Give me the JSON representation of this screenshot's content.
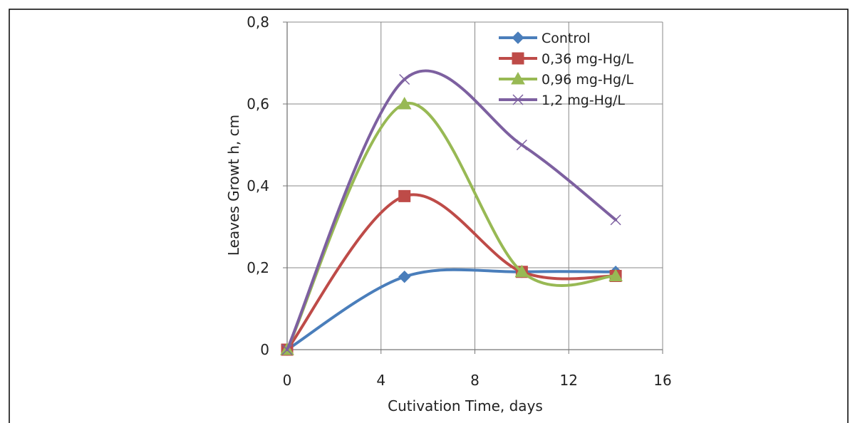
{
  "chart_data": {
    "type": "line",
    "title": "",
    "xlabel": "Cutivation Time, days",
    "ylabel": "Leaves  Growt h, cm",
    "xlim": [
      0,
      16
    ],
    "ylim": [
      0,
      0.8
    ],
    "x_ticks": [
      0,
      4,
      8,
      12,
      16
    ],
    "x_tick_labels": [
      "0",
      "4",
      "8",
      "12",
      "16"
    ],
    "y_ticks": [
      0,
      0.2,
      0.4,
      0.6,
      0.8
    ],
    "y_tick_labels": [
      "0",
      "0,2",
      "0,4",
      "0,6",
      "0,8"
    ],
    "grid": true,
    "legend_position": "top-right",
    "series": [
      {
        "name": "Control",
        "color": "#4a7ebb",
        "marker": "diamond",
        "x": [
          0,
          5,
          10,
          14
        ],
        "values": [
          0,
          0.178,
          0.19,
          0.19
        ]
      },
      {
        "name": "0,36 mg-Hg/L",
        "color": "#be4b48",
        "marker": "square",
        "x": [
          0,
          5,
          10,
          14
        ],
        "values": [
          0,
          0.375,
          0.19,
          0.18
        ]
      },
      {
        "name": "0,96 mg-Hg/L",
        "color": "#98b954",
        "marker": "triangle",
        "x": [
          0,
          5,
          10,
          14
        ],
        "values": [
          0,
          0.6,
          0.19,
          0.18
        ]
      },
      {
        "name": "1,2 mg-Hg/L",
        "color": "#7d60a0",
        "marker": "x",
        "x": [
          0,
          5,
          10,
          14
        ],
        "values": [
          0,
          0.66,
          0.5,
          0.317
        ]
      }
    ]
  }
}
